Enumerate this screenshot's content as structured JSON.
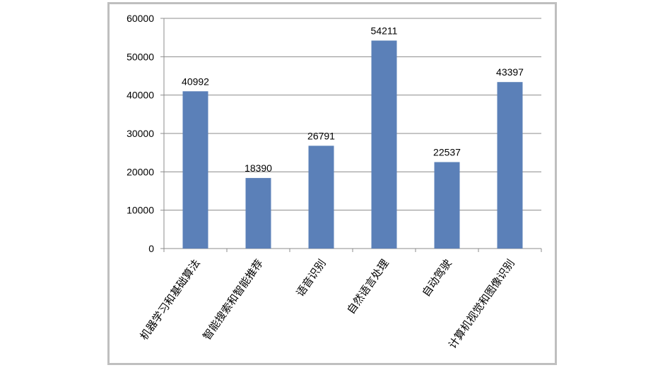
{
  "chart_data": {
    "type": "bar",
    "categories": [
      "机器学习和基础算法",
      "智能搜索和智能推荐",
      "语音识别",
      "自然语言处理",
      "自动驾驶",
      "计算机视觉和图像识别"
    ],
    "values": [
      40992,
      18390,
      26791,
      54211,
      22537,
      43397
    ],
    "data_labels": [
      "40992",
      "18390",
      "26791",
      "54211",
      "22537",
      "43397"
    ],
    "yticks": [
      "0",
      "10000",
      "20000",
      "30000",
      "40000",
      "50000",
      "60000"
    ],
    "ylim": [
      0,
      60000
    ],
    "grid": true,
    "legend": "none",
    "bar_color": "#5b80b8"
  }
}
